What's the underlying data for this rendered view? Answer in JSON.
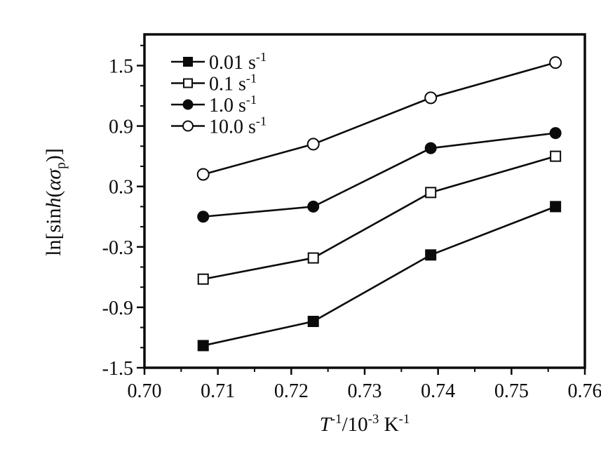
{
  "chart_data": {
    "type": "line",
    "title": "",
    "xlabel": "T⁻¹/10⁻³ K⁻¹",
    "xlabel_parts": [
      {
        "t": "T",
        "i": true
      },
      {
        "t": "-1",
        "sup": true
      },
      {
        "t": "/10"
      },
      {
        "t": "-3",
        "sup": true
      },
      {
        "t": " K"
      },
      {
        "t": "-1",
        "sup": true
      }
    ],
    "ylabel": "ln[sinh(ασp)]",
    "ylabel_parts": [
      {
        "t": "ln[sin"
      },
      {
        "t": "h",
        "i": true
      },
      {
        "t": "("
      },
      {
        "t": "α",
        "i": true
      },
      {
        "t": "σ",
        "i": true
      },
      {
        "t": "p",
        "sub": true
      },
      {
        "t": ")]"
      }
    ],
    "xlim": [
      0.7,
      0.76
    ],
    "ylim": [
      -1.5,
      1.81
    ],
    "x_axis": {
      "major_ticks": [
        0.7,
        0.71,
        0.72,
        0.73,
        0.74,
        0.75,
        0.76
      ],
      "tick_labels": [
        "0.70",
        "0.71",
        "0.72",
        "0.73",
        "0.74",
        "0.75",
        "0.76"
      ],
      "minor_step": 0.005
    },
    "y_axis": {
      "major_ticks": [
        -1.5,
        -0.9,
        -0.3,
        0.3,
        0.9,
        1.5
      ],
      "tick_labels": [
        "-1.5",
        "-0.9",
        "-0.3",
        "0.3",
        "0.9",
        "1.5"
      ],
      "minor_step": 0.2
    },
    "x": [
      0.708,
      0.723,
      0.739,
      0.756
    ],
    "series": [
      {
        "name": "0.01 s⁻¹",
        "label_parts": [
          {
            "t": "0.01 s"
          },
          {
            "t": "-1",
            "sup": true
          }
        ],
        "marker": "square-filled",
        "values": [
          -1.28,
          -1.04,
          -0.38,
          0.1
        ]
      },
      {
        "name": "0.1 s⁻¹",
        "label_parts": [
          {
            "t": "0.1 s"
          },
          {
            "t": "-1",
            "sup": true
          }
        ],
        "marker": "square-open",
        "values": [
          -0.62,
          -0.41,
          0.24,
          0.6
        ]
      },
      {
        "name": "1.0 s⁻¹",
        "label_parts": [
          {
            "t": "1.0 s"
          },
          {
            "t": "-1",
            "sup": true
          }
        ],
        "marker": "circle-filled",
        "values": [
          0.0,
          0.1,
          0.68,
          0.83
        ]
      },
      {
        "name": "10.0 s⁻¹",
        "label_parts": [
          {
            "t": "10.0 s"
          },
          {
            "t": "-1",
            "sup": true
          }
        ],
        "marker": "circle-open",
        "values": [
          0.42,
          0.72,
          1.18,
          1.53
        ]
      }
    ],
    "legend_position": "top-left",
    "grid": false,
    "colors": {
      "foreground": "#0b0b0b",
      "background": "#ffffff"
    }
  }
}
